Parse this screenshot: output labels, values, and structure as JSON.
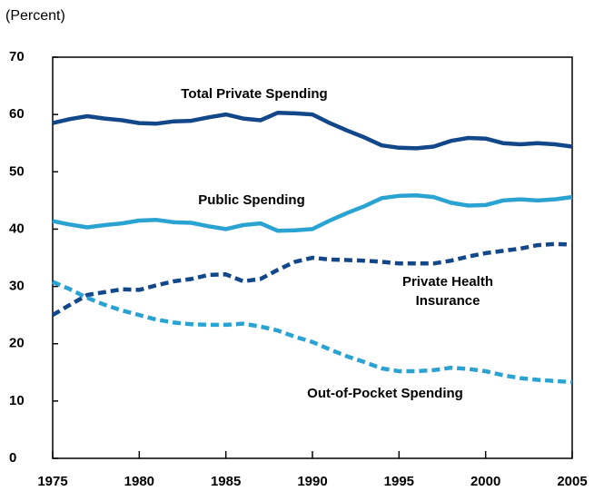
{
  "chart_data": {
    "type": "line",
    "y_label": "(Percent)",
    "x": [
      1975,
      1976,
      1977,
      1978,
      1979,
      1980,
      1981,
      1982,
      1983,
      1984,
      1985,
      1986,
      1987,
      1988,
      1989,
      1990,
      1991,
      1992,
      1993,
      1994,
      1995,
      1996,
      1997,
      1998,
      1999,
      2000,
      2001,
      2002,
      2003,
      2004,
      2005
    ],
    "xlim": [
      1975,
      2005
    ],
    "xticks": [
      1975,
      1980,
      1985,
      1990,
      1995,
      2000,
      2005
    ],
    "ylim": [
      0,
      70
    ],
    "yticks": [
      0,
      10,
      20,
      30,
      40,
      50,
      60,
      70
    ],
    "series": [
      {
        "label": [
          "Total Private Spending"
        ],
        "color": "#12488a",
        "dashed": false,
        "values": [
          58.5,
          59.2,
          59.7,
          59.3,
          59.0,
          58.5,
          58.4,
          58.8,
          58.9,
          59.5,
          60.0,
          59.3,
          59.0,
          60.3,
          60.2,
          60.0,
          58.5,
          57.2,
          56.0,
          54.6,
          54.2,
          54.1,
          54.4,
          55.4,
          55.9,
          55.8,
          55.0,
          54.8,
          55.0,
          54.8,
          54.4
        ]
      },
      {
        "label": [
          "Public Spending"
        ],
        "color": "#2aa3d3",
        "dashed": false,
        "values": [
          41.4,
          40.8,
          40.3,
          40.7,
          41.0,
          41.5,
          41.6,
          41.2,
          41.1,
          40.5,
          40.0,
          40.7,
          41.0,
          39.7,
          39.8,
          40.0,
          41.5,
          42.8,
          44.0,
          45.4,
          45.8,
          45.9,
          45.6,
          44.6,
          44.1,
          44.2,
          45.0,
          45.2,
          45.0,
          45.2,
          45.6
        ]
      },
      {
        "label": [
          "Private Health",
          "Insurance"
        ],
        "color": "#12488a",
        "dashed": true,
        "values": [
          25.0,
          26.8,
          28.5,
          29.0,
          29.5,
          29.4,
          30.2,
          30.9,
          31.3,
          32.0,
          32.1,
          30.9,
          31.3,
          32.9,
          34.3,
          35.0,
          34.7,
          34.6,
          34.5,
          34.3,
          34.0,
          34.0,
          34.0,
          34.5,
          35.2,
          35.8,
          36.2,
          36.6,
          37.2,
          37.4,
          37.3
        ]
      },
      {
        "label": [
          "Out-of-Pocket Spending"
        ],
        "color": "#2aa3d3",
        "dashed": true,
        "values": [
          30.8,
          29.5,
          28.0,
          26.8,
          25.8,
          25.0,
          24.2,
          23.7,
          23.4,
          23.3,
          23.3,
          23.5,
          23.0,
          22.3,
          21.2,
          20.3,
          19.0,
          17.8,
          16.8,
          15.7,
          15.2,
          15.2,
          15.4,
          15.8,
          15.6,
          15.2,
          14.5,
          14.0,
          13.7,
          13.5,
          13.3
        ]
      }
    ]
  }
}
